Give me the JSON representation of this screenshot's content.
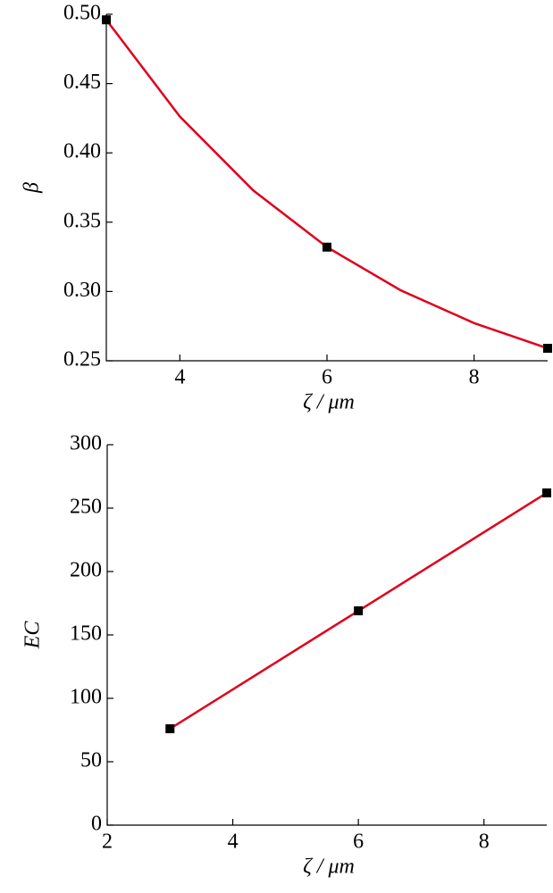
{
  "chart_data": [
    {
      "type": "line",
      "y_label": "β",
      "x_label": "ζ / μm",
      "xlim": [
        3,
        9
      ],
      "xticks": [
        4,
        6,
        8
      ],
      "ylim": [
        0.25,
        0.5
      ],
      "yticks": [
        {
          "value": 0.25,
          "label": "0.25"
        },
        {
          "value": 0.3,
          "label": "0.30"
        },
        {
          "value": 0.35,
          "label": "0.35"
        },
        {
          "value": 0.4,
          "label": "0.40"
        },
        {
          "value": 0.45,
          "label": "0.45"
        },
        {
          "value": 0.5,
          "label": "0.50"
        }
      ],
      "fit": {
        "color": "#e0001b",
        "x": [
          3,
          4,
          5,
          6,
          7,
          8,
          9
        ],
        "values": [
          0.496,
          0.4262,
          0.3728,
          0.332,
          0.3009,
          0.2772,
          0.259
        ]
      },
      "points": {
        "color": "#000000",
        "x": [
          3,
          6,
          9
        ],
        "values": [
          0.496,
          0.332,
          0.259
        ]
      }
    },
    {
      "type": "line",
      "y_label": "EC",
      "x_label": "ζ / μm",
      "xlim": [
        2,
        9
      ],
      "xticks": [
        2,
        4,
        6,
        8
      ],
      "ylim": [
        0,
        300
      ],
      "yticks": [
        0,
        50,
        100,
        150,
        200,
        250,
        300
      ],
      "fit": {
        "color": "#e0001b",
        "x": [
          3,
          6,
          9
        ],
        "values": [
          76,
          169,
          262
        ]
      },
      "points": {
        "color": "#000000",
        "x": [
          3,
          6,
          9
        ],
        "values": [
          76,
          169,
          262
        ]
      }
    }
  ]
}
